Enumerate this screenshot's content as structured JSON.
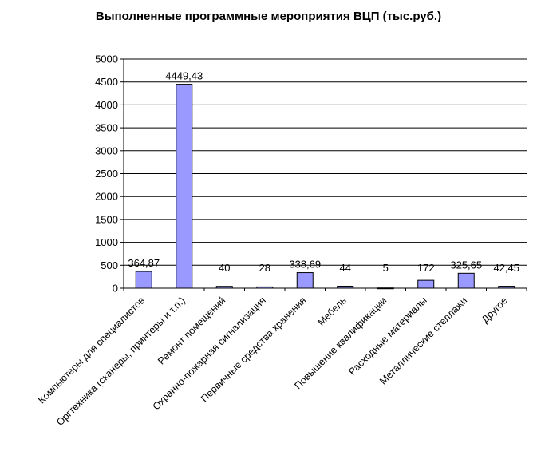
{
  "chart_data": {
    "type": "bar",
    "title": "Выполненные программные мероприятия ВЦП (тыс.руб.)",
    "xlabel": "",
    "ylabel": "",
    "ylim": [
      0,
      5000
    ],
    "yticks": [
      0,
      500,
      1000,
      1500,
      2000,
      2500,
      3000,
      3500,
      4000,
      4500,
      5000
    ],
    "grid": true,
    "legend": "none",
    "bar_color": "#9999ff",
    "categories": [
      "Компьютеры для специалистов",
      "Оргтехника (сканеры, принтеры и т.п.)",
      "Ремонт помещений",
      "Охранно-пожарная сигнализация",
      "Первичные средства хранения",
      "Мебель",
      "Повышение квалификации",
      "Расходные материалы",
      "Металлические стеллажи",
      "Другое"
    ],
    "values": [
      364.87,
      4449.43,
      40,
      28,
      338.69,
      44,
      5,
      172,
      325.65,
      42.45
    ],
    "data_labels": [
      "364,87",
      "4449,43",
      "40",
      "28",
      "338,69",
      "44",
      "5",
      "172",
      "325,65",
      "42,45"
    ]
  }
}
